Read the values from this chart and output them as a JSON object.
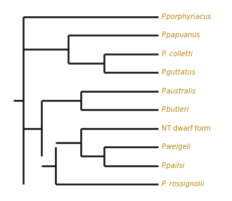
{
  "taxa": [
    "P.porphyriacus",
    "P.papuanus",
    "P. colletti",
    "P.guttatus",
    "P.australis",
    "P.butleri",
    "NT dwarf form",
    "P.weigeli",
    "P.pailsi",
    "P. rossignolii"
  ],
  "taxa_colors": [
    "#b8860b",
    "#b8860b",
    "#b8860b",
    "#b8860b",
    "#b8860b",
    "#b8860b",
    "#b8860b",
    "#b8860b",
    "#b8860b",
    "#b8860b"
  ],
  "line_color": "#111111",
  "background_color": "#ffffff",
  "line_width": 1.8,
  "font_size": 7.0,
  "fig_width": 3.3,
  "fig_height": 2.86
}
